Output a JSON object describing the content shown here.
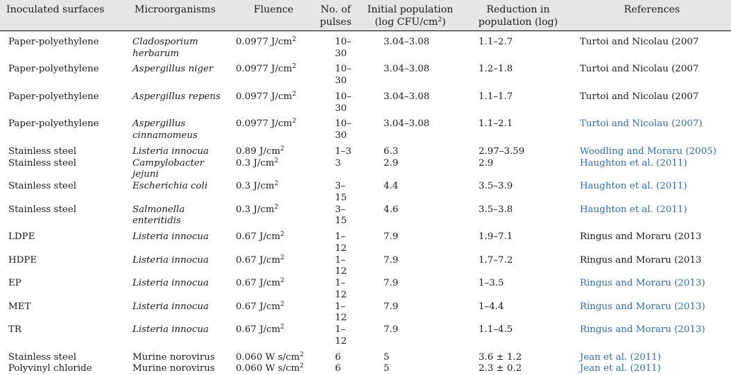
{
  "table": {
    "headers": {
      "surface": "Inoculated surfaces",
      "micro": "Microorganisms",
      "fluence": "Fluence",
      "pulses_line1": "No. of",
      "pulses_line2": "pulses",
      "init_line1": "Initial population",
      "init_line2a": "(log CFU/cm",
      "init_line2sup": "2",
      "init_line2b": ")",
      "red_line1": "Reduction in",
      "red_line2": "population (log)",
      "refs": "References"
    },
    "rows": [
      {
        "surface": "Paper-polyethylene",
        "micro1": "Cladosporium",
        "micro2": "herbarum",
        "fluence": "0.0977 J/cm",
        "sup": "2",
        "pulses": "10–30",
        "initial": "3.04–3.08",
        "reduction": "1.1–2.7",
        "ref": "Turtoi and Nicolau (2007",
        "linked": false
      },
      {
        "surface": "Paper-polyethylene",
        "micro1": "Aspergillus niger",
        "micro2": "",
        "fluence": "0.0977 J/cm",
        "sup": "2",
        "pulses": "10–30",
        "initial": "3.04–3.08",
        "reduction": "1.2–1.8",
        "ref": "Turtoi and Nicolau (2007",
        "linked": false
      },
      {
        "surface": "Paper-polyethylene",
        "micro1": "Aspergillus repens",
        "micro2": "",
        "fluence": "0.0977 J/cm",
        "sup": "2",
        "pulses": "10–30",
        "initial": "3.04–3.08",
        "reduction": "1.1–1.7",
        "ref": "Turtoi and Nicolau (2007",
        "linked": false
      },
      {
        "surface": "Paper-polyethylene",
        "micro1": "Aspergillus",
        "micro2": "cinnamomeus",
        "fluence": "0.0977 J/cm",
        "sup": "2",
        "pulses": "10–30",
        "initial": "3.04–3.08",
        "reduction": "1.1–2.1",
        "ref": "Turtoi and Nicolau (2007)",
        "linked": true
      },
      {
        "surface": "Stainless steel",
        "micro1": "Listeria innocua",
        "micro2": "",
        "fluence": "0.89 J/cm",
        "sup": "2",
        "pulses": "1–3",
        "initial": "6.3",
        "reduction": "2.97–3.59",
        "ref": "Woodling and Moraru (2005)",
        "linked": true
      },
      {
        "surface": "Stainless steel",
        "micro1": "Campylobacter jejuni",
        "micro2": "",
        "fluence": "0.3 J/cm",
        "sup": "2",
        "pulses": "3",
        "initial": "2.9",
        "reduction": "2.9",
        "ref": "Haughton et al. (2011)",
        "linked": true
      },
      {
        "surface": "Stainless steel",
        "micro1": "Escherichia coli",
        "micro2": "",
        "fluence": "0.3 J/cm",
        "sup": "2",
        "pulses": "3–15",
        "initial": "4.4",
        "reduction": "3.5–3.9",
        "ref": "Haughton et al. (2011)",
        "linked": true
      },
      {
        "surface": "Stainless steel",
        "micro1": "Salmonella",
        "micro2": "enteritidis",
        "fluence": "0.3 J/cm",
        "sup": "2",
        "pulses": "3–15",
        "initial": "4.6",
        "reduction": "3.5–3.8",
        "ref": "Haughton et al. (2011)",
        "linked": true
      },
      {
        "surface": "LDPE",
        "micro1": "Listeria innocua",
        "micro2": "",
        "fluence": "0.67 J/cm",
        "sup": "2",
        "pulses": "1–12",
        "initial": "7.9",
        "reduction": "1.9–7.1",
        "ref": "Ringus and Moraru (2013",
        "linked": false
      },
      {
        "surface": "HDPE",
        "micro1": "Listeria innocua",
        "micro2": "",
        "fluence": "0.67 J/cm",
        "sup": "2",
        "pulses": "1–12",
        "initial": "7.9",
        "reduction": "1.7–7.2",
        "ref": "Ringus and Moraru (2013",
        "linked": false
      },
      {
        "surface": "EP",
        "micro1": "Listeria innocua",
        "micro2": "",
        "fluence": "0.67 J/cm",
        "sup": "2",
        "pulses": "1–12",
        "initial": "7.9",
        "reduction": "1–3.5",
        "ref": "Ringus and Moraru (2013)",
        "linked": true
      },
      {
        "surface": "MET",
        "micro1": "Listeria innocua",
        "micro2": "",
        "fluence": "0.67 J/cm",
        "sup": "2",
        "pulses": "1–12",
        "initial": "7.9",
        "reduction": "1–4.4",
        "ref": "Ringus and Moraru (2013)",
        "linked": true
      },
      {
        "surface": "TR",
        "micro1": "Listeria innocua",
        "micro2": "",
        "fluence": "0.67 J/cm",
        "sup": "2",
        "pulses": "1–12",
        "initial": "7.9",
        "reduction": "1.1–4.5",
        "ref": "Ringus and Moraru (2013)",
        "linked": true
      },
      {
        "surface": "Stainless steel",
        "micro1": "Murine norovirus",
        "micro2": "",
        "fluence": "0.060 W s/cm",
        "sup": "2",
        "pulses": "6",
        "initial": "5",
        "reduction": "3.6 ± 1.2",
        "ref": "Jean et al. (2011)",
        "linked": true,
        "roman": true
      },
      {
        "surface": "Polyvinyl chloride",
        "micro1": "Murine norovirus",
        "micro2": "",
        "fluence": "0.060 W s/cm",
        "sup": "2",
        "pulses": "6",
        "initial": "5",
        "reduction": "2.3 ± 0.2",
        "ref": "Jean et al. (2011)",
        "linked": true,
        "roman": true
      }
    ],
    "link_color": "#2d6fb0",
    "header_bg": "#e6e6e6"
  }
}
